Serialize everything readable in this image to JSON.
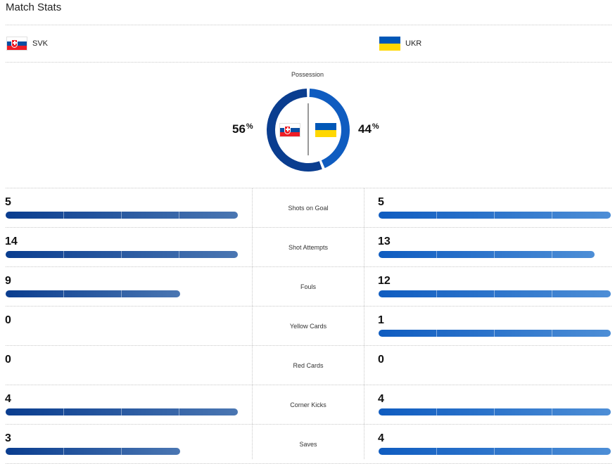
{
  "title": "Match Stats",
  "home": {
    "abbr": "SVK",
    "flag": "slovakia-flag"
  },
  "away": {
    "abbr": "UKR",
    "flag": "ukraine-flag"
  },
  "possession": {
    "label": "Possession",
    "home_value": "56",
    "away_value": "44",
    "unit": "%",
    "home_fraction": 0.56,
    "away_fraction": 0.44,
    "colors": {
      "home": "#0a3d8f",
      "away": "#0f5cc0"
    }
  },
  "stats": [
    {
      "label": "Shots on Goal",
      "home": "5",
      "away": "5",
      "home_fraction": 1.0,
      "away_fraction": 1.0
    },
    {
      "label": "Shot Attempts",
      "home": "14",
      "away": "13",
      "home_fraction": 1.0,
      "away_fraction": 0.93
    },
    {
      "label": "Fouls",
      "home": "9",
      "away": "12",
      "home_fraction": 0.75,
      "away_fraction": 1.0
    },
    {
      "label": "Yellow Cards",
      "home": "0",
      "away": "1",
      "home_fraction": 0,
      "away_fraction": 1.0
    },
    {
      "label": "Red Cards",
      "home": "0",
      "away": "0",
      "home_fraction": 0,
      "away_fraction": 0
    },
    {
      "label": "Corner Kicks",
      "home": "4",
      "away": "4",
      "home_fraction": 1.0,
      "away_fraction": 1.0
    },
    {
      "label": "Saves",
      "home": "3",
      "away": "4",
      "home_fraction": 0.75,
      "away_fraction": 1.0
    }
  ]
}
